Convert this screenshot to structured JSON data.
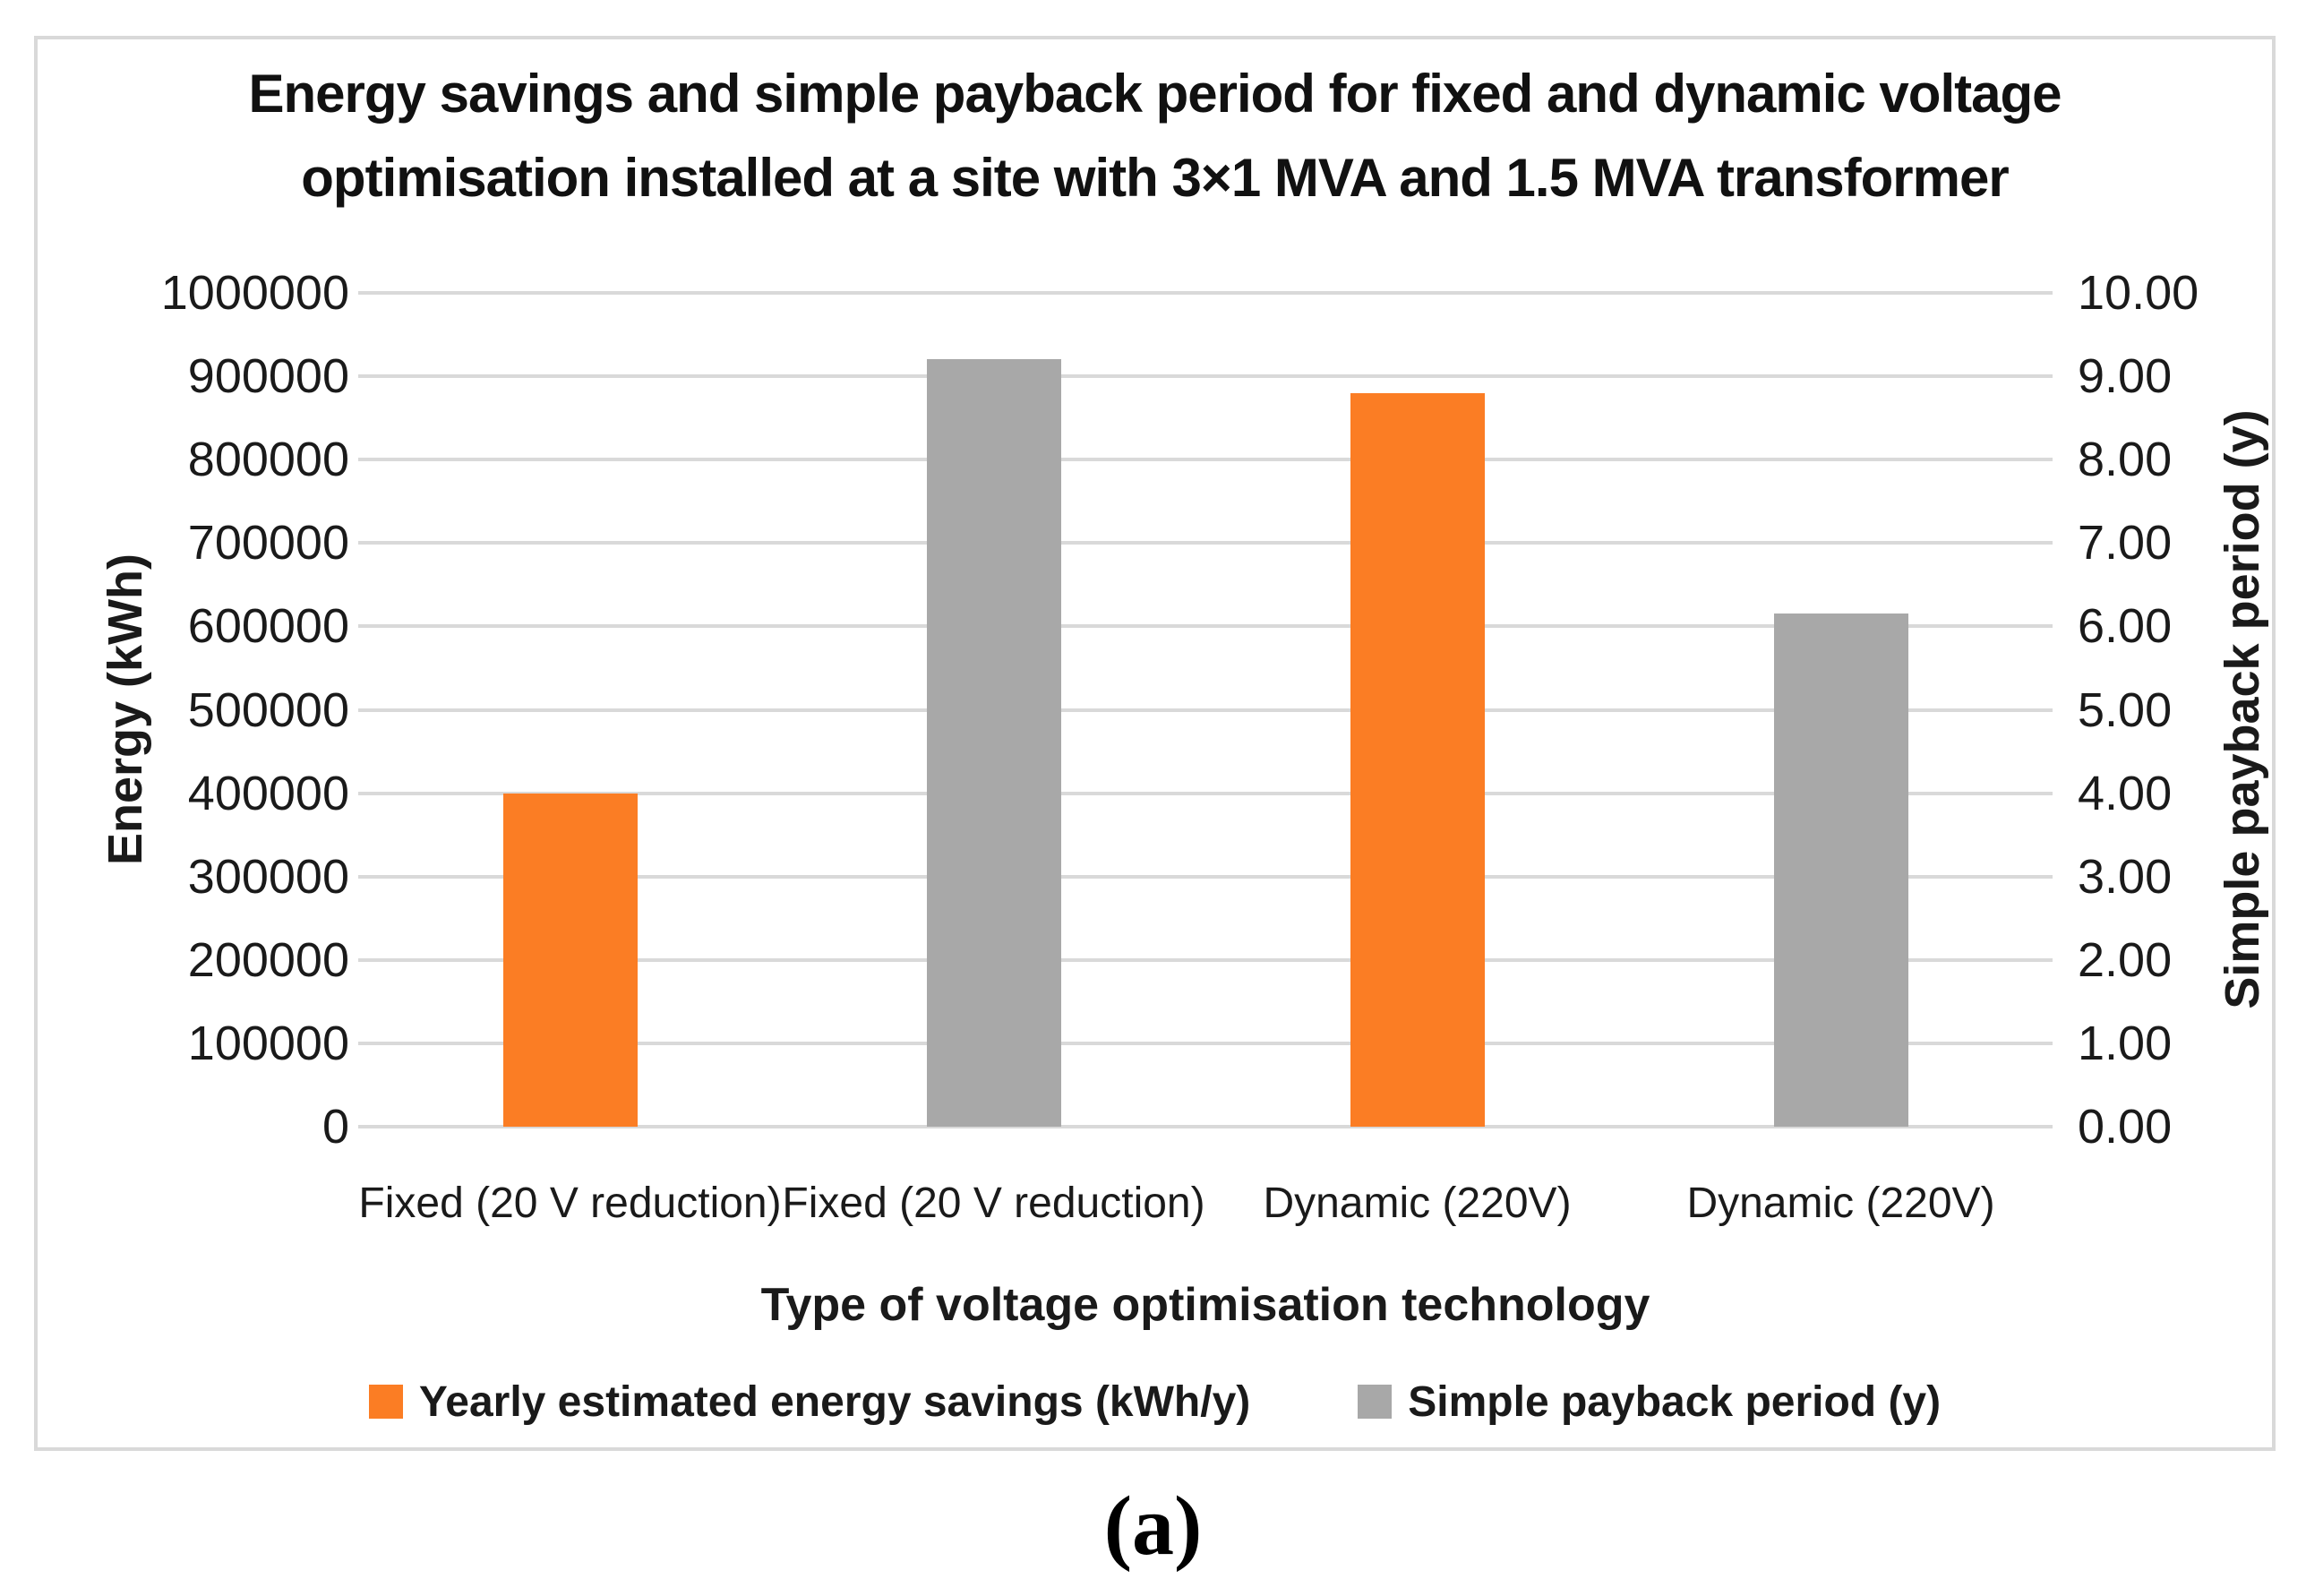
{
  "figure": {
    "caption": "(a)"
  },
  "chart": {
    "title_line1": "Energy savings and simple payback period for fixed and dynamic voltage",
    "title_line2": "optimisation installed at a site with 3×1 MVA and 1.5 MVA transformer",
    "left_axis": {
      "title": "Energy (kWh)"
    },
    "right_axis": {
      "title": "Simple payback period (y)"
    },
    "x_axis": {
      "title": "Type of voltage optimisation technology"
    }
  },
  "chart_data": {
    "type": "bar",
    "title": "Energy savings and simple payback period for fixed and dynamic voltage optimisation installed at a site with 3×1 MVA and 1.5 MVA transformer",
    "categories": [
      "Fixed (20 V reduction)",
      "Fixed (20 V reduction)",
      "Dynamic (220V)",
      "Dynamic (220V)"
    ],
    "series": [
      {
        "name": "Yearly estimated energy savings (kWh/y)",
        "axis": "left",
        "color": "#FB7D24",
        "values": [
          400000,
          null,
          880000,
          null
        ]
      },
      {
        "name": "Simple payback period (y)",
        "axis": "right",
        "color": "#A8A8A8",
        "values": [
          null,
          9.2,
          null,
          6.15
        ]
      }
    ],
    "left_axis": {
      "label": "Energy (kWh)",
      "range": [
        0,
        1000000
      ],
      "tick_step": 100000,
      "tick_labels_top_to_bottom": [
        "1000000",
        "900000",
        "800000",
        "700000",
        "600000",
        "500000",
        "400000",
        "300000",
        "200000",
        "100000",
        "0"
      ]
    },
    "right_axis": {
      "label": "Simple payback period (y)",
      "range": [
        0,
        10
      ],
      "tick_step": 1,
      "tick_labels_top_to_bottom": [
        "10.00",
        "9.00",
        "8.00",
        "7.00",
        "6.00",
        "5.00",
        "4.00",
        "3.00",
        "2.00",
        "1.00",
        "0.00"
      ]
    },
    "xlabel": "Type of voltage optimisation technology",
    "grid": true,
    "gridline_color": "#d9d9d9",
    "legend_position": "bottom",
    "legend": [
      "Yearly estimated energy savings (kWh/y)",
      "Simple payback period (y)"
    ]
  }
}
